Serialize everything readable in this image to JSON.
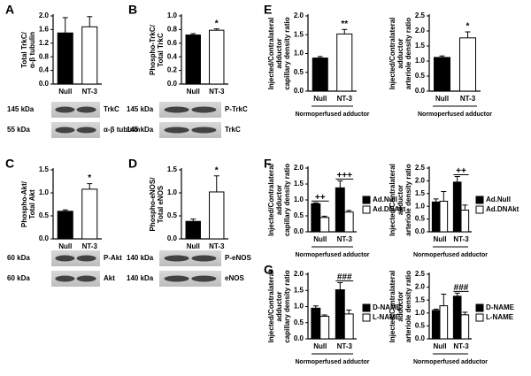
{
  "chart_data": [
    {
      "type": "bar",
      "panel": "A",
      "ylabel": [
        "Total TrkC/",
        "α-β tubulin"
      ],
      "categories": [
        "Null",
        "NT-3"
      ],
      "series": [
        {
          "color": "#ffffff",
          "values": [
            1.5,
            1.68
          ],
          "errors": [
            0.45,
            0.3
          ]
        }
      ],
      "colors_by_category": [
        "#000000",
        "#ffffff"
      ],
      "ylim": [
        0,
        2
      ],
      "yticks": [
        {
          "value": 0,
          "label": "0.0"
        },
        0.4,
        0.8,
        1.2,
        1.6,
        {
          "value": 2,
          "label": "2.0"
        }
      ],
      "blots": [
        {
          "size": "145 kDa",
          "name": "TrkC"
        },
        {
          "size": "55 kDa",
          "name": "α-β tubulin"
        }
      ]
    },
    {
      "type": "bar",
      "panel": "B",
      "ylabel": [
        "Phospho-TrkC/",
        "Total TrkC"
      ],
      "categories": [
        "Null",
        "NT-3"
      ],
      "series": [
        {
          "color": "#ffffff",
          "values": [
            0.72,
            0.79
          ],
          "errors": [
            0.02,
            0.02
          ]
        }
      ],
      "colors_by_category": [
        "#000000",
        "#ffffff"
      ],
      "annotations": [
        null,
        "*"
      ],
      "ylim": [
        0,
        1
      ],
      "yticks": [
        {
          "value": 0,
          "label": "0.0"
        },
        0.2,
        0.4,
        0.6,
        0.8,
        {
          "value": 1,
          "label": "1.0"
        }
      ],
      "blots": [
        {
          "size": "145 kDa",
          "name": "P-TrkC"
        },
        {
          "size": "145 kDa",
          "name": "TrkC"
        }
      ]
    },
    {
      "type": "bar",
      "panel": "C",
      "ylabel": [
        "Phospho-Akt/",
        "Total Akt"
      ],
      "categories": [
        "Null",
        "NT-3"
      ],
      "series": [
        {
          "color": "#ffffff",
          "values": [
            0.6,
            1.08
          ],
          "errors": [
            0.03,
            0.12
          ]
        }
      ],
      "colors_by_category": [
        "#000000",
        "#ffffff"
      ],
      "annotations": [
        null,
        "*"
      ],
      "ylim": [
        0,
        1.5
      ],
      "yticks": [
        {
          "value": 0,
          "label": "0.0"
        },
        0.5,
        {
          "value": 1,
          "label": "1.0"
        },
        1.5
      ],
      "blots": [
        {
          "size": "60 kDa",
          "name": "P-Akt"
        },
        {
          "size": "60 kDa",
          "name": "Akt"
        }
      ]
    },
    {
      "type": "bar",
      "panel": "D",
      "ylabel": [
        "Phospho-eNOS/",
        "Total eNOS"
      ],
      "categories": [
        "Null",
        "NT-3"
      ],
      "series": [
        {
          "color": "#ffffff",
          "values": [
            0.38,
            1.02
          ],
          "errors": [
            0.05,
            0.35
          ]
        }
      ],
      "colors_by_category": [
        "#000000",
        "#ffffff"
      ],
      "annotations": [
        null,
        "*"
      ],
      "ylim": [
        0,
        1.5
      ],
      "yticks": [
        {
          "value": 0,
          "label": "0.0"
        },
        0.5,
        {
          "value": 1,
          "label": "1.0"
        },
        1.5
      ],
      "blots": [
        {
          "size": "140 kDa",
          "name": "P-eNOS"
        },
        {
          "size": "140 kDa",
          "name": "eNOS"
        }
      ]
    },
    {
      "type": "bar",
      "panel": "E",
      "ylabel": [
        "Injected/Contralateral",
        "adductor",
        "capillary density ratio"
      ],
      "categories": [
        "Null",
        "NT-3"
      ],
      "xlabel": "Normoperfused adductor",
      "series": [
        {
          "color": "#ffffff",
          "values": [
            0.88,
            1.52
          ],
          "errors": [
            0.04,
            0.12
          ]
        }
      ],
      "colors_by_category": [
        "#000000",
        "#ffffff"
      ],
      "annotations": [
        null,
        "**"
      ],
      "ylim": [
        0,
        2
      ],
      "yticks": [
        {
          "value": 0,
          "label": "0.0"
        },
        0.5,
        {
          "value": 1,
          "label": "1.0"
        },
        1.5,
        {
          "value": 2,
          "label": "2.0"
        }
      ]
    },
    {
      "type": "bar",
      "ylabel": [
        "Injected/Contralateral",
        "adductor",
        "arteriole density ratio"
      ],
      "categories": [
        "Null",
        "NT-3"
      ],
      "xlabel": "Normoperfused adductor",
      "series": [
        {
          "color": "#ffffff",
          "values": [
            1.12,
            1.77
          ],
          "errors": [
            0.05,
            0.2
          ]
        }
      ],
      "colors_by_category": [
        "#000000",
        "#ffffff"
      ],
      "annotations": [
        null,
        "*"
      ],
      "ylim": [
        0,
        2.5
      ],
      "yticks": [
        {
          "value": 0,
          "label": "0.0"
        },
        0.5,
        {
          "value": 1,
          "label": "1.0"
        },
        1.5,
        {
          "value": 2,
          "label": "2.0"
        },
        2.5
      ]
    },
    {
      "type": "bar",
      "panel": "F",
      "ylabel": [
        "Injected/Contralateral",
        "adductor",
        "capillary density ratio"
      ],
      "categories": [
        "Null",
        "NT-3"
      ],
      "xlabel": "Normoperfused adductor",
      "series": [
        {
          "name": "Ad.Null",
          "color": "#000000",
          "values": [
            0.88,
            1.38
          ],
          "errors": [
            0.03,
            0.22
          ]
        },
        {
          "name": "Ad.DNAkt",
          "color": "#ffffff",
          "values": [
            0.45,
            0.62
          ],
          "errors": [
            0.04,
            0.05
          ]
        }
      ],
      "annotations": [
        "++",
        "+++"
      ],
      "ylim": [
        0,
        2
      ],
      "yticks": [
        {
          "value": 0,
          "label": "0.0"
        },
        0.5,
        {
          "value": 1,
          "label": "1.0"
        },
        1.5,
        {
          "value": 2,
          "label": "2.0"
        }
      ]
    },
    {
      "type": "bar",
      "ylabel": [
        "Injected/Contralateral",
        "adductor",
        "arteriole density ratio"
      ],
      "categories": [
        "Null",
        "NT-3"
      ],
      "xlabel": "Normoperfused adductor",
      "series": [
        {
          "name": "Ad.Null",
          "color": "#000000",
          "values": [
            1.17,
            1.95
          ],
          "errors": [
            0.12,
            0.22
          ]
        },
        {
          "name": "Ad.DNAkt",
          "color": "#ffffff",
          "values": [
            1.2,
            0.85
          ],
          "errors": [
            0.38,
            0.2
          ]
        }
      ],
      "annotations": [
        null,
        "++"
      ],
      "ylim": [
        0,
        2.5
      ],
      "yticks": [
        {
          "value": 0,
          "label": "0.0"
        },
        0.5,
        {
          "value": 1,
          "label": "1.0"
        },
        1.5,
        {
          "value": 2,
          "label": "2.0"
        },
        2.5
      ]
    },
    {
      "type": "bar",
      "panel": "G",
      "ylabel": [
        "Injected/Contralateral",
        "adductor",
        "capillary density ratio"
      ],
      "categories": [
        "Null",
        "NT-3"
      ],
      "xlabel": "Normoperfused adductor",
      "series": [
        {
          "name": "D-NAME",
          "color": "#000000",
          "values": [
            0.95,
            1.52
          ],
          "errors": [
            0.07,
            0.22
          ]
        },
        {
          "name": "L-NAME",
          "color": "#ffffff",
          "values": [
            0.7,
            0.77
          ],
          "errors": [
            0.04,
            0.12
          ]
        }
      ],
      "annotations": [
        null,
        "###"
      ],
      "ylim": [
        0,
        2
      ],
      "yticks": [
        {
          "value": 0,
          "label": "0.0"
        },
        0.5,
        {
          "value": 1,
          "label": "1.0"
        },
        1.5,
        {
          "value": 2,
          "label": "2.0"
        }
      ]
    },
    {
      "type": "bar",
      "ylabel": [
        "Injected/Contralateral",
        "adductor",
        "arteriole density ratio"
      ],
      "categories": [
        "Null",
        "NT-3"
      ],
      "xlabel": "Normoperfused adductor",
      "series": [
        {
          "name": "D-NAME",
          "color": "#000000",
          "values": [
            1.1,
            1.65
          ],
          "errors": [
            0.05,
            0.12
          ]
        },
        {
          "name": "L-NAME",
          "color": "#ffffff",
          "values": [
            1.28,
            0.93
          ],
          "errors": [
            0.45,
            0.1
          ]
        }
      ],
      "annotations": [
        null,
        "###"
      ],
      "ylim": [
        0,
        2.5
      ],
      "yticks": [
        {
          "value": 0,
          "label": "0.0"
        },
        0.5,
        {
          "value": 1,
          "label": "1.0"
        },
        1.5,
        {
          "value": 2,
          "label": "2.0"
        },
        2.5
      ]
    }
  ]
}
